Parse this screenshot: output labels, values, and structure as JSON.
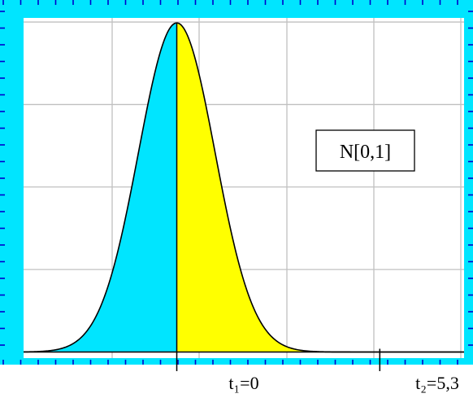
{
  "chart_data": {
    "type": "area",
    "title": "",
    "xlabel": "",
    "ylabel": "",
    "xlim": [
      -4,
      7.5
    ],
    "ylim": [
      -0.0074,
      0.405
    ],
    "grid": true,
    "legend": "N[0,1]",
    "curve": {
      "distribution": "normal",
      "mean": 0,
      "sd": 1
    },
    "regions": [
      {
        "color": "#00e5ff",
        "from": -4,
        "to": 0
      },
      {
        "color": "#ffff00",
        "from": 0,
        "to": 3.9
      }
    ],
    "annotations": [
      {
        "text": "t₁=0",
        "x": 0
      },
      {
        "text": "t₂=5,3",
        "x": 5.3
      }
    ]
  },
  "colors": {
    "frame": "#00e5ff",
    "plot_background": "#ffffff",
    "grid": "#c0c0c0",
    "axis_ticks": "#0000cc",
    "curve": "#000000"
  }
}
